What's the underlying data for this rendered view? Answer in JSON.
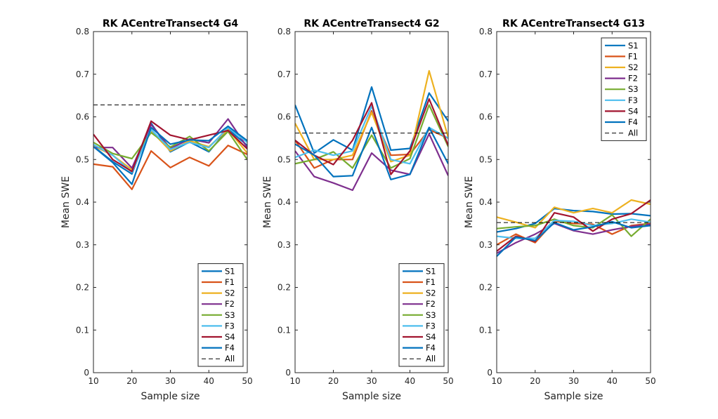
{
  "chart_data": [
    {
      "type": "line",
      "title": "RK ACentreTransect4 G4",
      "xlabel": "Sample size",
      "ylabel": "Mean SWE",
      "xlim": [
        10,
        50
      ],
      "ylim": [
        0,
        0.8
      ],
      "x_ticks": [
        "10",
        "20",
        "30",
        "40",
        "50"
      ],
      "y_ticks": [
        "0",
        "0.1",
        "0.2",
        "0.3",
        "0.4",
        "0.5",
        "0.6",
        "0.7",
        "0.8"
      ],
      "legend_position": "bottom-right",
      "x": [
        10,
        15,
        20,
        25,
        30,
        35,
        40,
        45,
        50
      ],
      "series": [
        {
          "name": "S1",
          "color": "#0072BD",
          "values": [
            0.531,
            0.495,
            0.466,
            0.585,
            0.518,
            0.541,
            0.518,
            0.571,
            0.533
          ]
        },
        {
          "name": "F1",
          "color": "#D95319",
          "values": [
            0.489,
            0.483,
            0.43,
            0.52,
            0.481,
            0.505,
            0.485,
            0.533,
            0.512
          ]
        },
        {
          "name": "S2",
          "color": "#EDB120",
          "values": [
            0.532,
            0.51,
            0.476,
            0.567,
            0.52,
            0.544,
            0.53,
            0.57,
            0.515
          ]
        },
        {
          "name": "F2",
          "color": "#7E2F8E",
          "values": [
            0.528,
            0.528,
            0.48,
            0.582,
            0.526,
            0.548,
            0.539,
            0.595,
            0.528
          ]
        },
        {
          "name": "S3",
          "color": "#77AC30",
          "values": [
            0.54,
            0.514,
            0.502,
            0.563,
            0.529,
            0.554,
            0.52,
            0.566,
            0.5
          ]
        },
        {
          "name": "F3",
          "color": "#4DBEEE",
          "values": [
            0.535,
            0.51,
            0.47,
            0.57,
            0.524,
            0.54,
            0.528,
            0.575,
            0.54
          ]
        },
        {
          "name": "S4",
          "color": "#A2142F",
          "values": [
            0.559,
            0.5,
            0.472,
            0.59,
            0.557,
            0.546,
            0.557,
            0.568,
            0.525
          ]
        },
        {
          "name": "F4",
          "color": "#0072BD",
          "values": [
            0.53,
            0.493,
            0.442,
            0.575,
            0.536,
            0.546,
            0.544,
            0.578,
            0.544
          ]
        }
      ],
      "reference_line": {
        "name": "All",
        "value": 0.628
      }
    },
    {
      "type": "line",
      "title": "RK ACentreTransect4 G2",
      "xlabel": "Sample size",
      "ylabel": "Mean SWE",
      "xlim": [
        10,
        50
      ],
      "ylim": [
        0,
        0.8
      ],
      "x_ticks": [
        "10",
        "20",
        "30",
        "40",
        "50"
      ],
      "y_ticks": [
        "0",
        "0.1",
        "0.2",
        "0.3",
        "0.4",
        "0.5",
        "0.6",
        "0.7",
        "0.8"
      ],
      "legend_position": "bottom-right",
      "x": [
        10,
        15,
        20,
        25,
        30,
        35,
        40,
        45,
        50
      ],
      "series": [
        {
          "name": "S1",
          "color": "#0072BD",
          "values": [
            0.628,
            0.515,
            0.546,
            0.522,
            0.67,
            0.522,
            0.526,
            0.656,
            0.59
          ]
        },
        {
          "name": "F1",
          "color": "#D95319",
          "values": [
            0.545,
            0.48,
            0.5,
            0.5,
            0.614,
            0.51,
            0.512,
            0.57,
            0.55
          ]
        },
        {
          "name": "S2",
          "color": "#EDB120",
          "values": [
            0.585,
            0.5,
            0.5,
            0.51,
            0.61,
            0.495,
            0.51,
            0.708,
            0.552
          ]
        },
        {
          "name": "F2",
          "color": "#7E2F8E",
          "values": [
            0.52,
            0.46,
            0.445,
            0.428,
            0.515,
            0.475,
            0.465,
            0.56,
            0.462
          ]
        },
        {
          "name": "S3",
          "color": "#77AC30",
          "values": [
            0.49,
            0.5,
            0.518,
            0.48,
            0.557,
            0.48,
            0.502,
            0.628,
            0.53
          ]
        },
        {
          "name": "F3",
          "color": "#4DBEEE",
          "values": [
            0.505,
            0.522,
            0.51,
            0.52,
            0.625,
            0.5,
            0.49,
            0.575,
            0.55
          ]
        },
        {
          "name": "S4",
          "color": "#A2142F",
          "values": [
            0.545,
            0.51,
            0.488,
            0.545,
            0.633,
            0.465,
            0.52,
            0.642,
            0.533
          ]
        },
        {
          "name": "F4",
          "color": "#0072BD",
          "values": [
            0.536,
            0.51,
            0.46,
            0.462,
            0.575,
            0.453,
            0.465,
            0.575,
            0.49
          ]
        }
      ],
      "reference_line": {
        "name": "All",
        "value": 0.562
      }
    },
    {
      "type": "line",
      "title": "RK ACentreTransect4 G13",
      "xlabel": "Sample size",
      "ylabel": "Mean SWE",
      "xlim": [
        10,
        50
      ],
      "ylim": [
        0,
        0.8
      ],
      "x_ticks": [
        "10",
        "20",
        "30",
        "40",
        "50"
      ],
      "y_ticks": [
        "0",
        "0.1",
        "0.2",
        "0.3",
        "0.4",
        "0.5",
        "0.6",
        "0.7",
        "0.8"
      ],
      "legend_position": "top-right",
      "x": [
        10,
        15,
        20,
        25,
        30,
        35,
        40,
        45,
        50
      ],
      "series": [
        {
          "name": "S1",
          "color": "#0072BD",
          "values": [
            0.33,
            0.338,
            0.35,
            0.385,
            0.38,
            0.378,
            0.372,
            0.373,
            0.368
          ]
        },
        {
          "name": "F1",
          "color": "#D95319",
          "values": [
            0.3,
            0.325,
            0.305,
            0.355,
            0.35,
            0.348,
            0.325,
            0.345,
            0.35
          ]
        },
        {
          "name": "S2",
          "color": "#EDB120",
          "values": [
            0.365,
            0.353,
            0.34,
            0.388,
            0.375,
            0.385,
            0.375,
            0.405,
            0.395
          ]
        },
        {
          "name": "F2",
          "color": "#7E2F8E",
          "values": [
            0.28,
            0.305,
            0.325,
            0.35,
            0.333,
            0.325,
            0.335,
            0.343,
            0.348
          ]
        },
        {
          "name": "S3",
          "color": "#77AC30",
          "values": [
            0.338,
            0.342,
            0.345,
            0.36,
            0.345,
            0.34,
            0.37,
            0.32,
            0.36
          ]
        },
        {
          "name": "F3",
          "color": "#4DBEEE",
          "values": [
            0.32,
            0.315,
            0.315,
            0.357,
            0.355,
            0.345,
            0.35,
            0.36,
            0.353
          ]
        },
        {
          "name": "S4",
          "color": "#A2142F",
          "values": [
            0.285,
            0.32,
            0.308,
            0.375,
            0.365,
            0.332,
            0.36,
            0.373,
            0.405
          ]
        },
        {
          "name": "F4",
          "color": "#0072BD",
          "values": [
            0.273,
            0.318,
            0.31,
            0.352,
            0.335,
            0.342,
            0.354,
            0.34,
            0.345
          ]
        }
      ],
      "reference_line": {
        "name": "All",
        "value": 0.352
      }
    }
  ]
}
